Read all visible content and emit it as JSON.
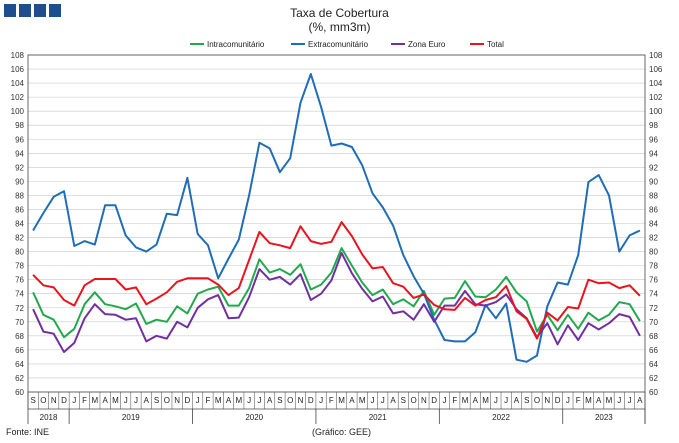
{
  "header": {
    "title": "Taxa de Cobertura",
    "subtitle": "(%, mm3m)"
  },
  "footer": {
    "source": "Fonte: INE",
    "credit": "(Gráfico: GEE)"
  },
  "colors": {
    "logo": "#1f4e8c",
    "grid": "#c8c8c8",
    "axis": "#444444"
  },
  "chart_data": {
    "type": "line",
    "ylim": [
      60,
      108
    ],
    "yticks": [
      60,
      62,
      64,
      66,
      68,
      70,
      72,
      74,
      76,
      78,
      80,
      82,
      84,
      86,
      88,
      90,
      92,
      94,
      96,
      98,
      100,
      102,
      104,
      106,
      108
    ],
    "grid": true,
    "legend_position": "top-center",
    "x": [
      "S",
      "O",
      "N",
      "D",
      "J",
      "F",
      "M",
      "A",
      "M",
      "J",
      "J",
      "A",
      "S",
      "O",
      "N",
      "D",
      "J",
      "F",
      "M",
      "A",
      "M",
      "J",
      "J",
      "A",
      "S",
      "O",
      "N",
      "D",
      "J",
      "F",
      "M",
      "A",
      "M",
      "J",
      "J",
      "A",
      "S",
      "O",
      "N",
      "D",
      "J",
      "F",
      "M",
      "A",
      "M",
      "J",
      "J",
      "A",
      "S",
      "O",
      "N",
      "D",
      "J",
      "F",
      "M",
      "A",
      "M",
      "J",
      "J",
      "A"
    ],
    "years": [
      {
        "label": "2018",
        "start": 0,
        "end": 3
      },
      {
        "label": "2019",
        "start": 4,
        "end": 15
      },
      {
        "label": "2020",
        "start": 16,
        "end": 27
      },
      {
        "label": "2021",
        "start": 28,
        "end": 39
      },
      {
        "label": "2022",
        "start": 40,
        "end": 51
      },
      {
        "label": "2023",
        "start": 52,
        "end": 59
      }
    ],
    "series": [
      {
        "name": "Intracomunitário",
        "color": "#22a94e",
        "values": [
          74.2,
          71.0,
          70.3,
          67.8,
          69.0,
          72.5,
          74.2,
          72.5,
          72.2,
          71.8,
          72.6,
          69.7,
          70.3,
          70.0,
          72.2,
          71.2,
          74.0,
          74.6,
          75.0,
          72.3,
          72.3,
          74.8,
          78.9,
          77.0,
          77.5,
          76.7,
          78.2,
          74.6,
          75.3,
          77.0,
          80.5,
          78.0,
          75.6,
          73.8,
          74.6,
          72.5,
          73.2,
          72.2,
          74.4,
          71.0,
          73.3,
          73.4,
          75.8,
          73.6,
          73.5,
          74.6,
          76.4,
          74.2,
          72.9,
          68.6,
          71.0,
          68.8,
          71.0,
          69.0,
          71.3,
          70.2,
          71.0,
          72.8,
          72.5,
          70.1
        ]
      },
      {
        "name": "Extracomunitário",
        "color": "#1f6db5",
        "values": [
          83.0,
          85.5,
          87.8,
          88.6,
          80.8,
          81.5,
          81.0,
          86.6,
          86.6,
          82.3,
          80.6,
          80.0,
          81.0,
          85.4,
          85.2,
          90.5,
          82.5,
          80.9,
          76.2,
          79.0,
          81.7,
          88.0,
          95.5,
          94.7,
          91.3,
          93.3,
          101.2,
          105.3,
          100.6,
          95.1,
          95.4,
          94.9,
          92.3,
          88.3,
          86.3,
          83.7,
          79.5,
          76.5,
          74.0,
          70.3,
          67.4,
          67.2,
          67.2,
          68.5,
          72.4,
          70.5,
          72.6,
          64.6,
          64.3,
          65.2,
          72.2,
          75.6,
          75.3,
          79.5,
          89.9,
          90.9,
          88.0,
          80.0,
          82.3,
          83.0
        ]
      },
      {
        "name": "Zona Euro",
        "color": "#7030a0",
        "values": [
          71.8,
          68.6,
          68.3,
          65.7,
          67.0,
          70.5,
          72.5,
          71.1,
          71.0,
          70.3,
          70.5,
          67.2,
          68.0,
          67.6,
          70.0,
          69.2,
          72.0,
          73.2,
          73.8,
          70.5,
          70.6,
          73.5,
          77.5,
          76.0,
          76.4,
          75.3,
          76.8,
          73.1,
          74.0,
          75.9,
          79.8,
          76.9,
          74.7,
          72.9,
          73.6,
          71.2,
          71.5,
          70.3,
          72.5,
          70.0,
          72.3,
          72.3,
          74.4,
          72.5,
          72.3,
          72.8,
          73.9,
          71.8,
          70.5,
          67.8,
          69.8,
          66.8,
          69.5,
          67.4,
          69.8,
          68.9,
          69.8,
          71.1,
          70.7,
          68.0
        ]
      },
      {
        "name": "Total",
        "color": "#e8141e",
        "values": [
          76.7,
          75.2,
          74.9,
          73.1,
          72.3,
          75.2,
          76.1,
          76.1,
          76.1,
          74.6,
          74.9,
          72.5,
          73.3,
          74.2,
          75.7,
          76.2,
          76.2,
          76.2,
          75.3,
          73.8,
          74.8,
          78.8,
          82.8,
          81.2,
          80.9,
          80.5,
          83.6,
          81.5,
          81.1,
          81.4,
          84.2,
          82.2,
          79.6,
          77.6,
          77.8,
          75.5,
          75.0,
          73.4,
          73.9,
          72.4,
          71.8,
          71.7,
          73.4,
          72.3,
          73.1,
          73.5,
          75.1,
          71.5,
          70.4,
          67.6,
          71.3,
          70.2,
          72.1,
          71.9,
          76.0,
          75.5,
          75.6,
          74.8,
          75.2,
          73.7
        ]
      }
    ]
  }
}
